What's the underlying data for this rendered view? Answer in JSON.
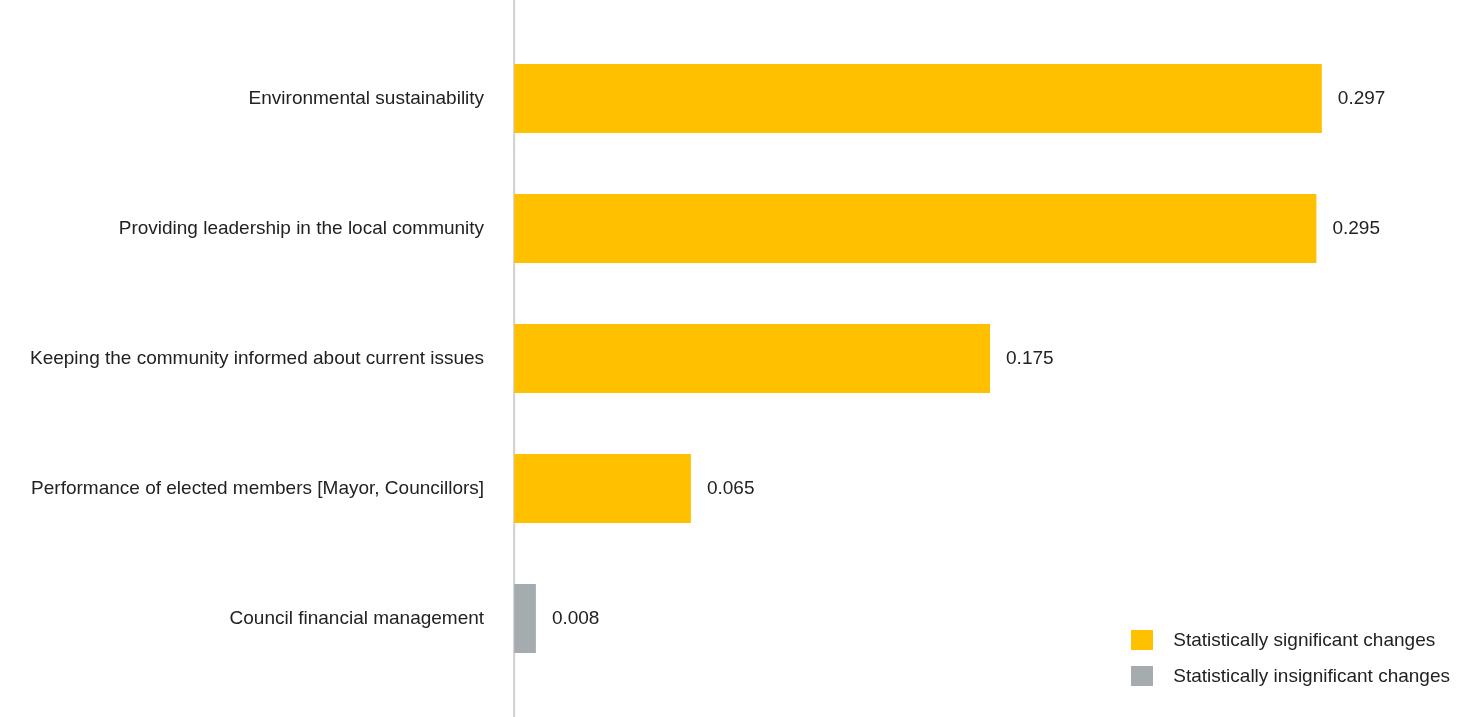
{
  "chart_data": {
    "type": "bar",
    "orientation": "horizontal",
    "stacked": true,
    "categories": [
      "Environmental sustainability",
      "Providing leadership in the local community",
      "Keeping the community informed about current issues",
      "Performance of elected members [Mayor, Councillors]",
      "Council financial management"
    ],
    "series": [
      {
        "name": "Statistically significant changes",
        "color": "#ffc000",
        "values": [
          0.297,
          0.295,
          0.175,
          0.065,
          null
        ]
      },
      {
        "name": "Statistically insignificant changes",
        "color": "#a5acb0",
        "values": [
          null,
          null,
          null,
          null,
          0.008
        ]
      }
    ],
    "data_labels": true,
    "legend": "bottom right"
  }
}
